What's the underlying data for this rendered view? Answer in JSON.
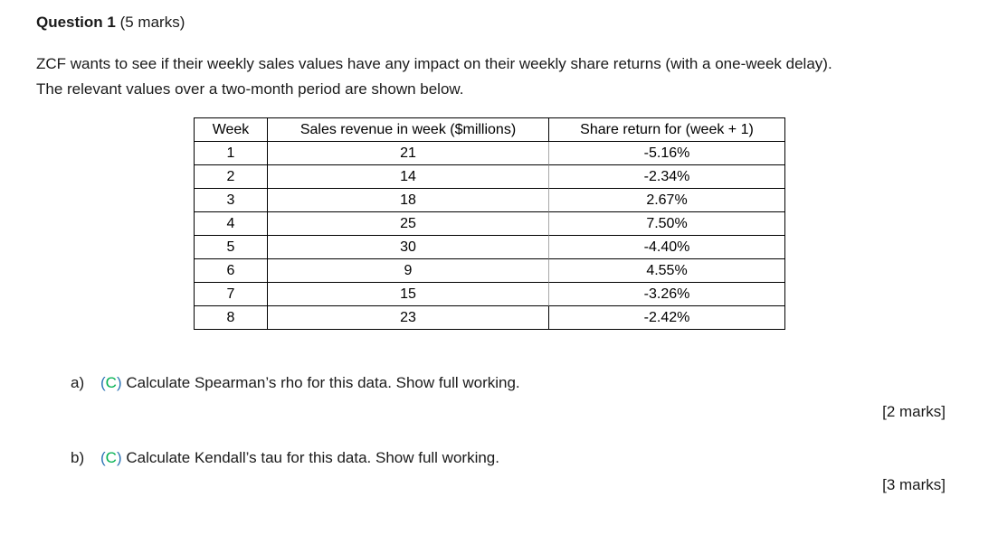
{
  "page": {
    "title_bold": "Question 1",
    "title_rest": " (5 marks)",
    "intro_line1": "ZCF wants to see if their weekly sales values have any impact on their weekly share returns (with a one-week delay).",
    "intro_line2": "The relevant values over a two-month period are shown below."
  },
  "table": {
    "headers": [
      "Week",
      "Sales revenue in week ($millions)",
      "Share return for (week + 1)"
    ],
    "rows": [
      {
        "week": "1",
        "sales": "21",
        "share": "-5.16%"
      },
      {
        "week": "2",
        "sales": "14",
        "share": "-2.34%"
      },
      {
        "week": "3",
        "sales": "18",
        "share": "2.67%"
      },
      {
        "week": "4",
        "sales": "25",
        "share": "7.50%"
      },
      {
        "week": "5",
        "sales": "30",
        "share": "-4.40%"
      },
      {
        "week": "6",
        "sales": "9",
        "share": "4.55%"
      },
      {
        "week": "7",
        "sales": "15",
        "share": "-3.26%"
      },
      {
        "week": "8",
        "sales": "23",
        "share": "-2.42%"
      }
    ]
  },
  "questions": [
    {
      "label": "a)",
      "tag_open": "(",
      "tag_letter": "C",
      "tag_close": ")",
      "text": " Calculate Spearman’s rho for this data. Show full working.",
      "marks": "[2 marks]"
    },
    {
      "label": "b)",
      "tag_open": "(",
      "tag_letter": "C",
      "tag_close": ")",
      "text": " Calculate Kendall’s tau for this data. Show full working.",
      "marks": "[3 marks]"
    }
  ],
  "colors": {
    "text": "#1a1a1a",
    "table_border": "#000000",
    "gray_divider": "#a8a8a8",
    "tag_paren_blue": "#2E75B6",
    "tag_letter_green": "#00B050"
  }
}
